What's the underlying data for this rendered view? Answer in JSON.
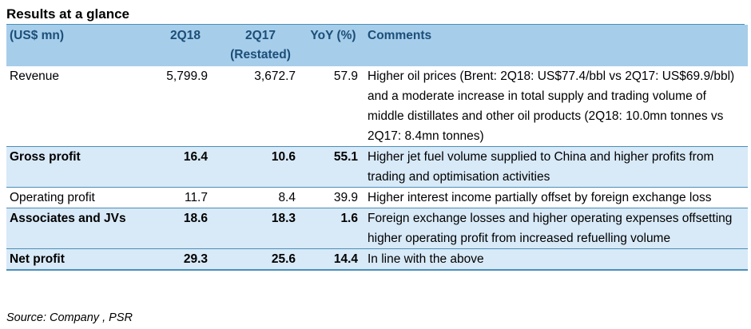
{
  "title": "Results at a glance",
  "headers": {
    "label": "(US$ mn)",
    "col_2q18": "2Q18",
    "col_2q17": "2Q17",
    "col_2q17_note": "(Restated)",
    "col_yoy": "YoY (%)",
    "col_comments": "Comments"
  },
  "rows": [
    {
      "label": "Revenue",
      "v2q18": "5,799.9",
      "v2q17": "3,672.7",
      "yoy": "57.9",
      "comment": "Higher oil prices (Brent: 2Q18: US$77.4/bbl vs 2Q17: US$69.9/bbl) and a moderate increase in total supply and trading volume of middle distillates and other oil products (2Q18: 10.0mn tonnes vs 2Q17: 8.4mn tonnes)"
    },
    {
      "label": "Gross profit",
      "v2q18": "16.4",
      "v2q17": "10.6",
      "yoy": "55.1",
      "comment": "Higher jet fuel volume supplied to China and higher profits from trading and optimisation activities"
    },
    {
      "label": "Operating profit",
      "v2q18": "11.7",
      "v2q17": "8.4",
      "yoy": "39.9",
      "comment": "Higher interest income partially offset by foreign exchange loss"
    },
    {
      "label": "Associates and JVs",
      "v2q18": "18.6",
      "v2q17": "18.3",
      "yoy": "1.6",
      "comment": "Foreign exchange losses and higher operating expenses offsetting higher operating profit from increased refuelling volume"
    },
    {
      "label": "Net profit",
      "v2q18": "29.3",
      "v2q17": "25.6",
      "yoy": "14.4",
      "comment": "In line with the above"
    }
  ],
  "source": "Source: Company , PSR",
  "colors": {
    "header_bg": "#a6cdea",
    "header_text": "#1c4e78",
    "shaded_row_bg": "#d8e9f7",
    "rule": "#4a8fb8"
  }
}
